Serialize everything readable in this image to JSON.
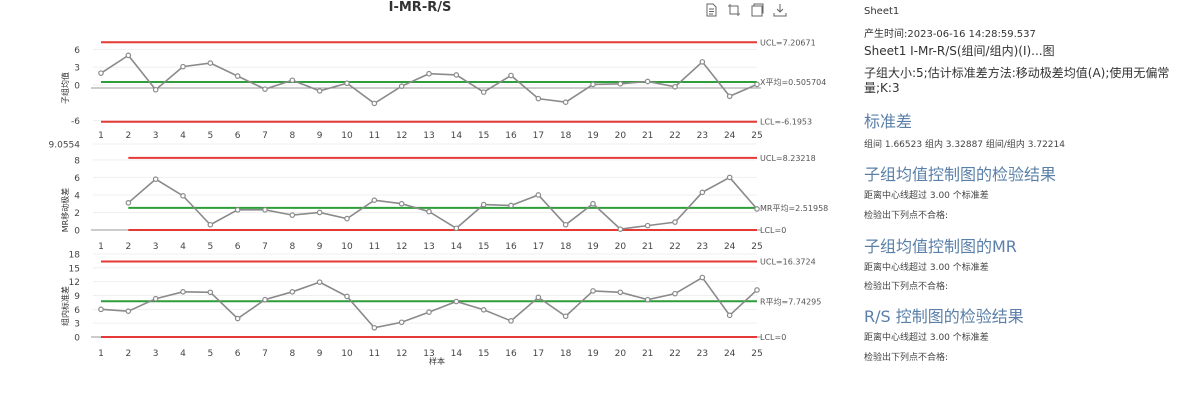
{
  "page": {
    "title": "I-MR-R/S"
  },
  "toolbar": {
    "icons": [
      "document-icon",
      "crop-icon",
      "copy-icon",
      "download-icon"
    ]
  },
  "chart_data": [
    {
      "type": "line",
      "panel": "individual",
      "ylabel": "子组均值",
      "x": [
        1,
        2,
        3,
        4,
        5,
        6,
        7,
        8,
        9,
        10,
        11,
        12,
        13,
        14,
        15,
        16,
        17,
        18,
        19,
        20,
        21,
        22,
        23,
        24,
        25
      ],
      "values": [
        2.0,
        5.0,
        -0.8,
        3.1,
        3.7,
        1.5,
        -0.7,
        0.8,
        -1.0,
        0.3,
        -3.1,
        -0.2,
        1.9,
        1.7,
        -1.2,
        1.6,
        -2.3,
        -2.9,
        0.1,
        0.2,
        0.6,
        -0.3,
        3.9,
        -1.9,
        0.1
      ],
      "ticks": [
        "-6",
        "0",
        "3",
        "6"
      ],
      "ylim": [
        -7,
        7
      ],
      "ucl": 7.20671,
      "center": 0.505704,
      "lcl": -6.1953,
      "ucl_label": "UCL=7.20671",
      "center_label": "X平均=0.505704",
      "lcl_label": "LCL=-6.1953",
      "colors": {
        "limit": "#e53935",
        "center": "#2e9e3a",
        "series": "#8a8a8a"
      }
    },
    {
      "type": "line",
      "panel": "moving-range",
      "ylabel": "MR移动极差",
      "x": [
        2,
        3,
        4,
        5,
        6,
        7,
        8,
        9,
        10,
        11,
        12,
        13,
        14,
        15,
        16,
        17,
        18,
        19,
        20,
        21,
        22,
        23,
        24,
        25
      ],
      "values": [
        3.1,
        5.8,
        3.9,
        0.6,
        2.3,
        2.3,
        1.7,
        2.0,
        1.3,
        3.4,
        3.0,
        2.1,
        0.2,
        2.9,
        2.8,
        4.0,
        0.6,
        3.0,
        0.1,
        0.5,
        0.9,
        4.3,
        6.0,
        2.4
      ],
      "ticks": [
        "0",
        "2",
        "4",
        "6",
        "8",
        "9.0554"
      ],
      "ylim": [
        0,
        8.9
      ],
      "ucl": 8.23218,
      "center": 2.51958,
      "lcl": 0,
      "ucl_label": "UCL=8.23218",
      "center_label": "MR平均=2.51958",
      "lcl_label": "LCL=0",
      "colors": {
        "limit": "#e53935",
        "center": "#2e9e3a",
        "series": "#8a8a8a"
      }
    },
    {
      "type": "line",
      "panel": "range-stdev",
      "ylabel": "组内标准差",
      "xlabel": "样本",
      "x": [
        1,
        2,
        3,
        4,
        5,
        6,
        7,
        8,
        9,
        10,
        11,
        12,
        13,
        14,
        15,
        16,
        17,
        18,
        19,
        20,
        21,
        22,
        23,
        24,
        25
      ],
      "values": [
        6.0,
        5.6,
        8.3,
        9.8,
        9.7,
        4.0,
        8.1,
        9.8,
        11.9,
        8.8,
        2.0,
        3.2,
        5.4,
        7.7,
        5.9,
        3.5,
        8.6,
        4.5,
        10.0,
        9.7,
        8.1,
        9.4,
        12.9,
        4.7,
        10.2
      ],
      "ticks": [
        "0",
        "3",
        "6",
        "9",
        "12",
        "15",
        "18"
      ],
      "ylim": [
        0,
        18
      ],
      "ucl": 16.3724,
      "center": 7.74295,
      "lcl": 0,
      "ucl_label": "UCL=16.3724",
      "center_label": "R平均=7.74295",
      "lcl_label": "LCL=0",
      "colors": {
        "limit": "#e53935",
        "center": "#2e9e3a",
        "series": "#8a8a8a"
      }
    }
  ],
  "side_panel": {
    "sheet": "Sheet1",
    "generated": "产生时间:2023-06-16 14:28:59.537",
    "subtitle": "Sheet1 I-Mr-R/S(组间/组内)(I)...图",
    "info_line1": "子组大小:5;估计标准差方法:移动极差均值(A);使用无偏常",
    "info_line2": "量;K:3",
    "stdev_heading": "标准差",
    "stdev_values": "组间 1.66523 组内 3.32887 组间/组内 3.72214",
    "sec1_heading": "子组均值控制图的检验结果",
    "sec1_line1": "距离中心线超过 3.00 个标准差",
    "sec1_line2": "检验出下列点不合格:",
    "sec2_heading": "子组均值控制图的MR",
    "sec2_line1": "距离中心线超过 3.00 个标准差",
    "sec2_line2": "检验出下列点不合格:",
    "sec3_heading": "R/S 控制图的检验结果",
    "sec3_line1": "距离中心线超过 3.00 个标准差",
    "sec3_line2": "检验出下列点不合格:"
  }
}
